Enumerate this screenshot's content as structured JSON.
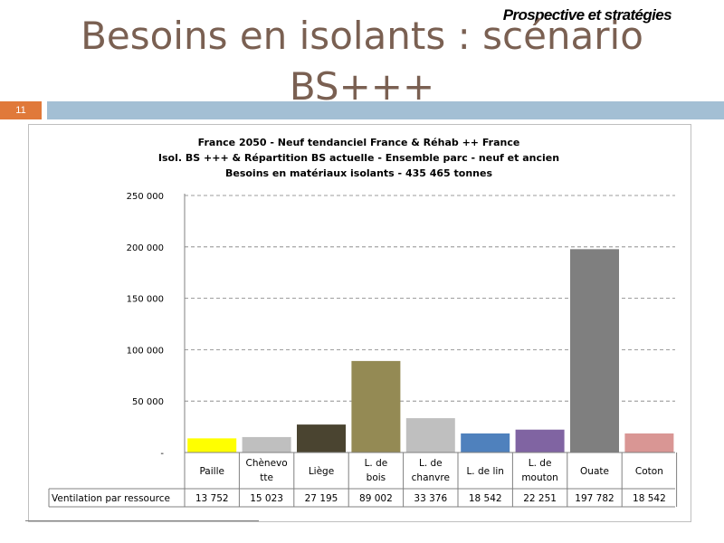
{
  "header": {
    "top_label": "Prospective et stratégies",
    "title_line1": "Besoins en isolants : scénario",
    "title_line2": "BS+++",
    "slide_number": "11"
  },
  "colors": {
    "title": "#7a6052",
    "slide_number_bg": "#e0793a",
    "strip": "#a3bfd4"
  },
  "chart_data": {
    "type": "bar",
    "title": [
      "France 2050 - Neuf tendanciel France & Réhab ++ France",
      "Isol. BS +++ & Répartition BS actuelle - Ensemble parc - neuf et ancien",
      "Besoins en matériaux isolants - 435 465 tonnes"
    ],
    "categories": [
      [
        "Paille"
      ],
      [
        "Chènevo",
        "tte"
      ],
      [
        "Liège"
      ],
      [
        "L. de",
        "bois"
      ],
      [
        "L. de",
        "chanvre"
      ],
      [
        "L. de lin"
      ],
      [
        "L. de",
        "mouton"
      ],
      [
        "Ouate"
      ],
      [
        "Coton"
      ]
    ],
    "values": [
      13752,
      15023,
      27195,
      89002,
      33376,
      18542,
      22251,
      197782,
      18542
    ],
    "value_labels": [
      "13 752",
      "15 023",
      "27 195",
      "89 002",
      "33 376",
      "18 542",
      "22 251",
      "197 782",
      "18 542"
    ],
    "bar_colors": [
      "#ffff00",
      "#bfbfbf",
      "#4a4430",
      "#948a54",
      "#bfbfbf",
      "#4f81bd",
      "#8064a2",
      "#7f7f7f",
      "#d99694"
    ],
    "y_ticks": [
      0,
      50000,
      100000,
      150000,
      200000,
      250000
    ],
    "y_tick_labels": [
      "-",
      "50 000",
      "100 000",
      "150 000",
      "200 000",
      "250 000"
    ],
    "ylim": [
      0,
      250000
    ],
    "grid": "dashed horizontal",
    "legend": "data table below chart",
    "table_row_label": "Ventilation par ressource"
  }
}
